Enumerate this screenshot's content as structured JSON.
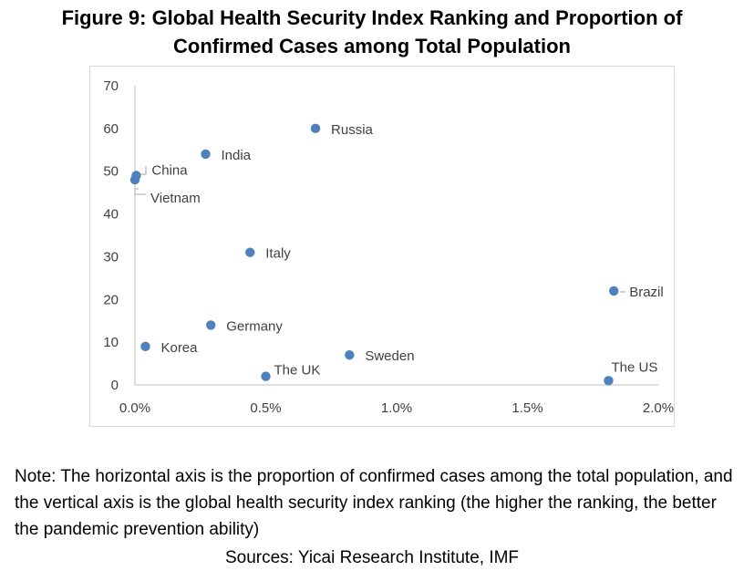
{
  "title_line1": "Figure 9: Global Health Security Index Ranking and Proportion of",
  "title_line2": "Confirmed Cases among Total Population",
  "note": "Note: The horizontal axis is the proportion of confirmed cases among the total population, and the vertical axis is the global health security index ranking (the higher the ranking, the better the pandemic prevention ability)",
  "source": "Sources: Yicai Research Institute, IMF",
  "colors": {
    "point": "#4f81bd",
    "axis": "#bfbfbf",
    "frame": "#d9d9d9",
    "text": "#404040"
  },
  "chart_data": {
    "type": "scatter",
    "title": "",
    "xlabel": "",
    "ylabel": "",
    "xlim": [
      0,
      2.0
    ],
    "ylim": [
      0,
      70
    ],
    "x_ticks": [
      "0.0%",
      "0.5%",
      "1.0%",
      "1.5%",
      "2.0%"
    ],
    "x_tick_values": [
      0,
      0.5,
      1.0,
      1.5,
      2.0
    ],
    "y_ticks": [
      "0",
      "10",
      "20",
      "30",
      "40",
      "50",
      "60",
      "70"
    ],
    "y_tick_values": [
      0,
      10,
      20,
      30,
      40,
      50,
      60,
      70
    ],
    "grid": false,
    "legend": "none",
    "points": [
      {
        "label": "Russia",
        "x": 0.69,
        "y": 60
      },
      {
        "label": "India",
        "x": 0.27,
        "y": 54
      },
      {
        "label": "China",
        "x": 0.005,
        "y": 49
      },
      {
        "label": "Vietnam",
        "x": 0.0,
        "y": 48
      },
      {
        "label": "Italy",
        "x": 0.44,
        "y": 31
      },
      {
        "label": "Brazil",
        "x": 1.83,
        "y": 22
      },
      {
        "label": "Germany",
        "x": 0.29,
        "y": 14
      },
      {
        "label": "Korea",
        "x": 0.04,
        "y": 9
      },
      {
        "label": "Sweden",
        "x": 0.82,
        "y": 7
      },
      {
        "label": "The UK",
        "x": 0.5,
        "y": 2
      },
      {
        "label": "The US",
        "x": 1.81,
        "y": 1
      }
    ]
  }
}
